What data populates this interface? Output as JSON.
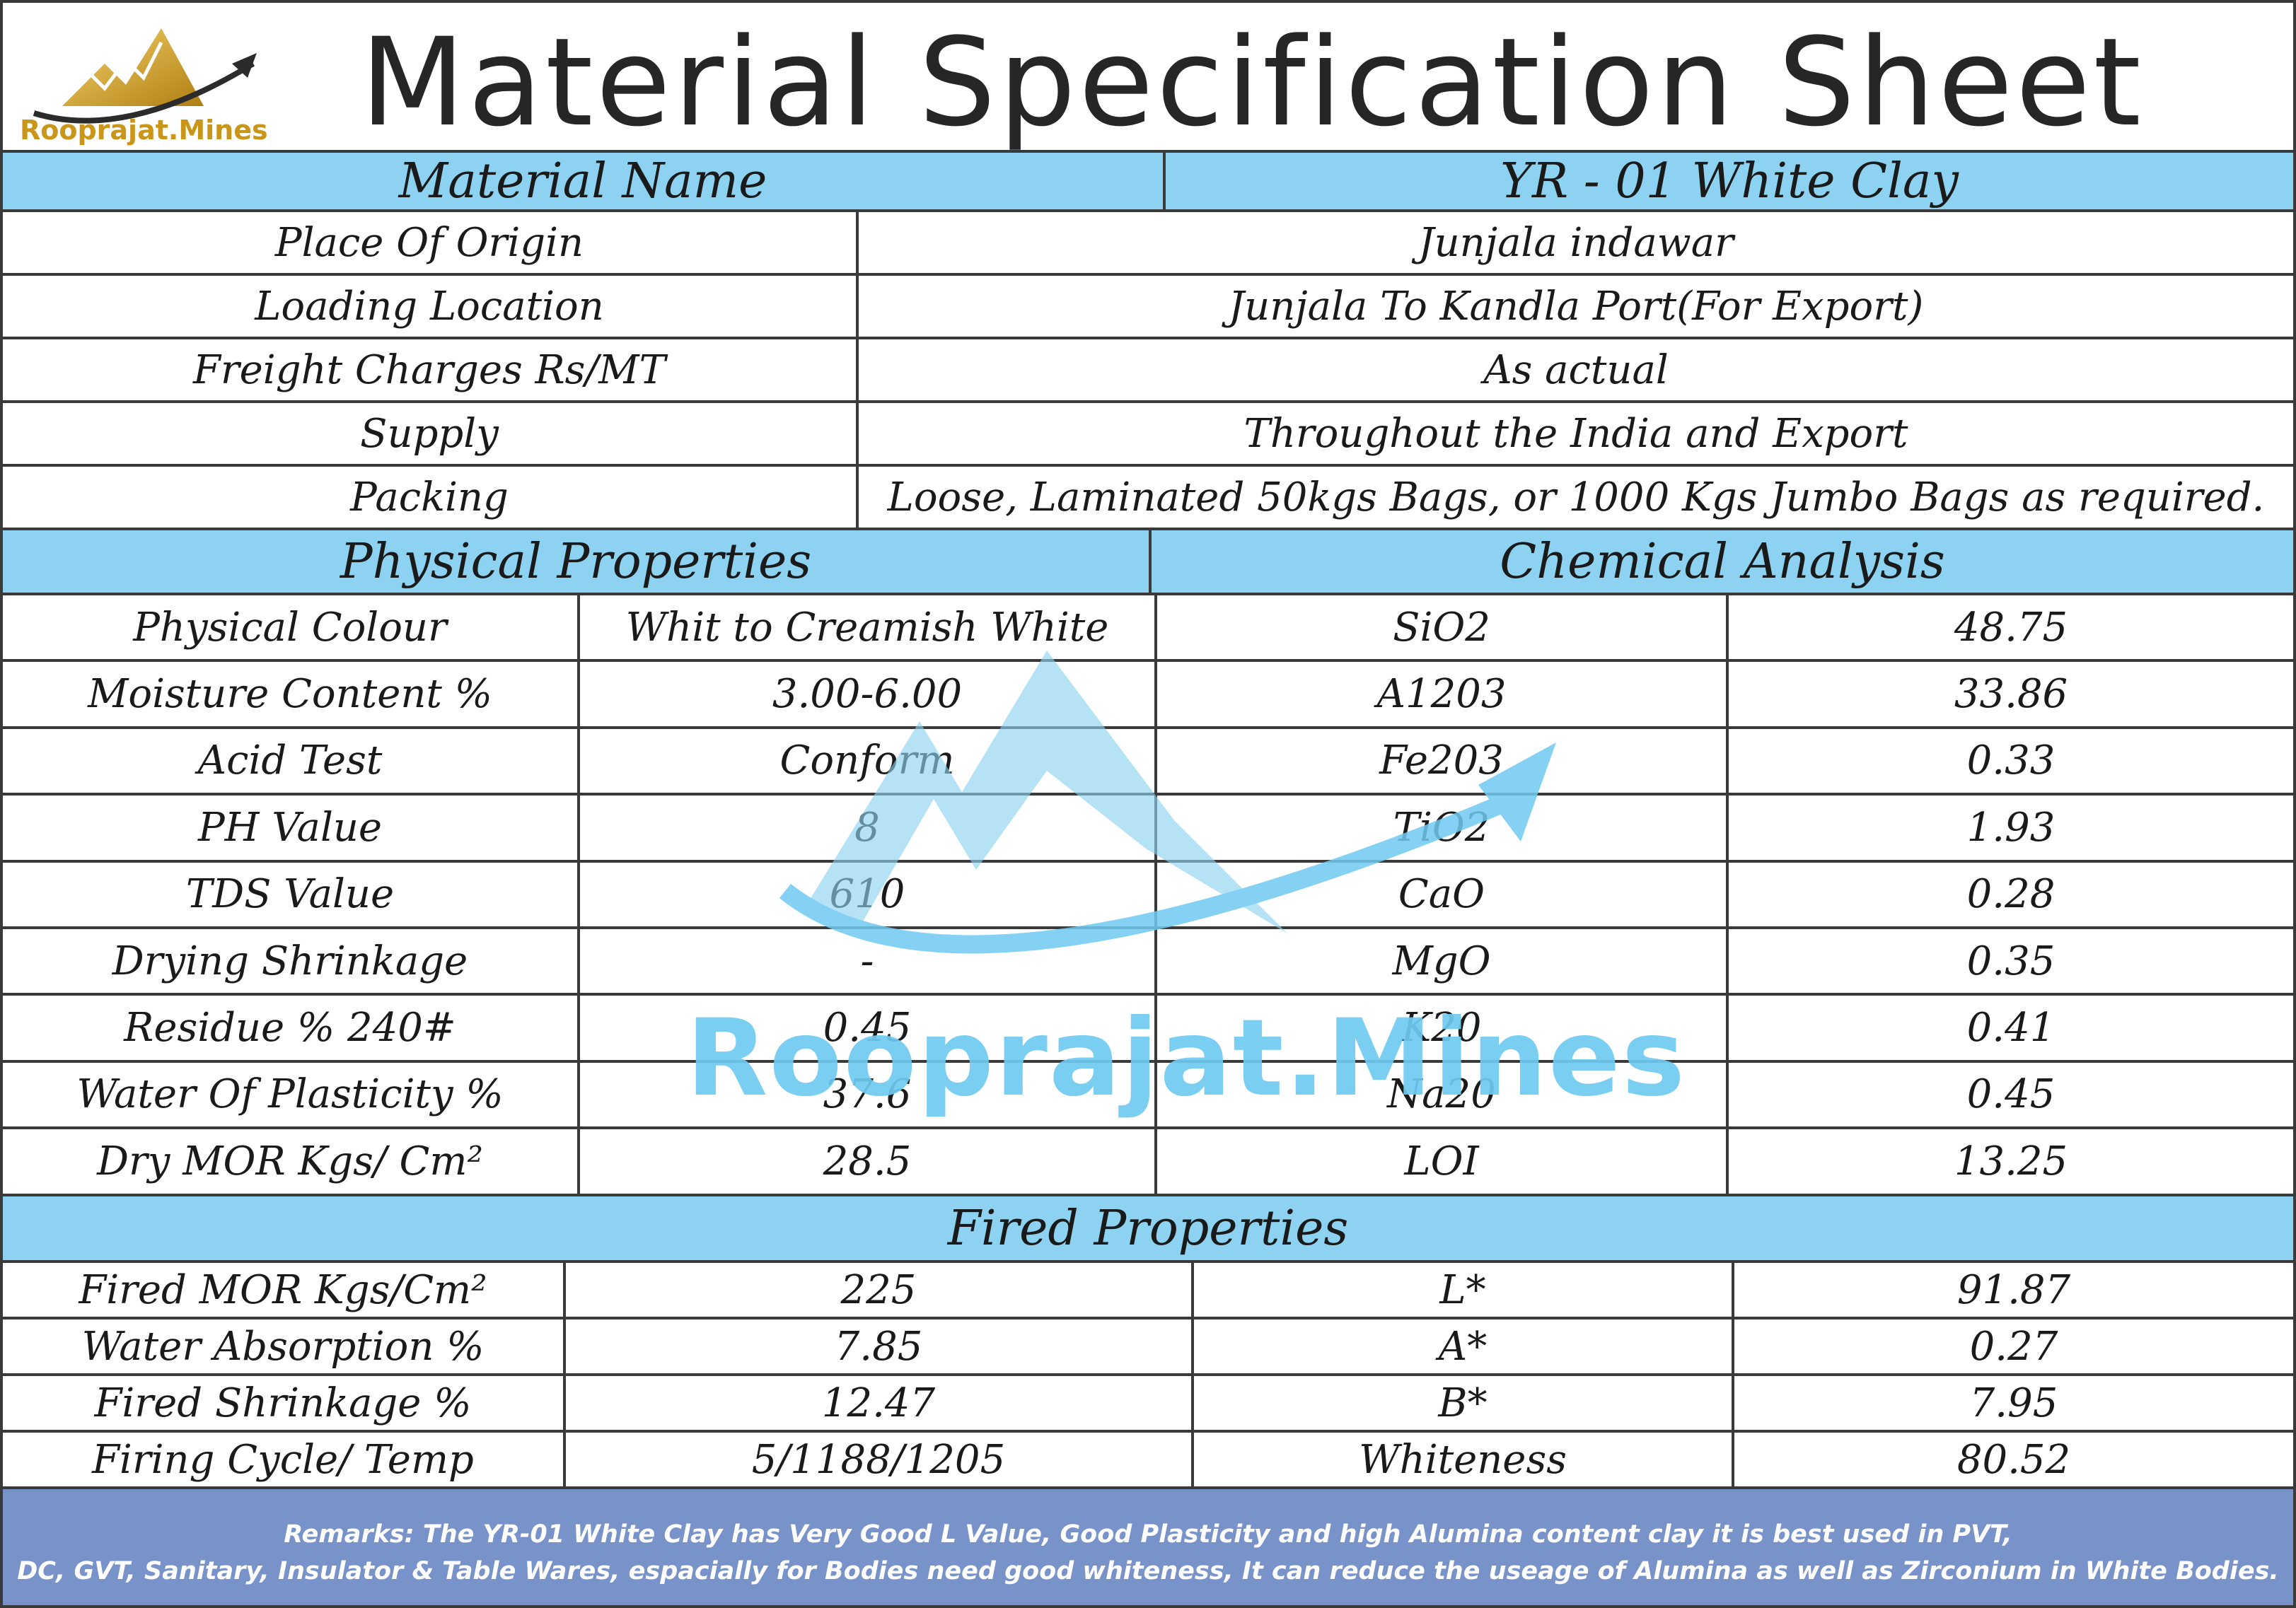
{
  "brand": {
    "logo_text": "Rooprajat.Mines",
    "watermark_text": "Rooprajat.Mines",
    "gold": "#c9961a",
    "accent": "#8dd2f0",
    "remarks_bg": "#7893c9"
  },
  "title": "Material Specification Sheet",
  "material": {
    "label": "Material Name",
    "value": "YR - 01 White Clay"
  },
  "info_rows": [
    {
      "label": "Place Of Origin",
      "value": "Junjala indawar"
    },
    {
      "label": "Loading Location",
      "value": "Junjala To Kandla Port(For Export)"
    },
    {
      "label": "Freight Charges Rs/MT",
      "value": "As actual"
    },
    {
      "label": "Supply",
      "value": "Throughout the India and Export"
    },
    {
      "label": "Packing",
      "value": "Loose, Laminated 50kgs Bags, or 1000 Kgs Jumbo Bags as required."
    }
  ],
  "sections": {
    "physical": "Physical Properties",
    "chemical": "Chemical Analysis",
    "fired": "Fired Properties"
  },
  "physical_rows": [
    {
      "prop": "Physical Colour",
      "pval": "Whit to Creamish White",
      "chem": "SiO2",
      "cval": "48.75"
    },
    {
      "prop": "Moisture Content %",
      "pval": "3.00-6.00",
      "chem": "A1203",
      "cval": "33.86"
    },
    {
      "prop": "Acid Test",
      "pval": "Conform",
      "chem": "Fe203",
      "cval": "0.33"
    },
    {
      "prop": "PH Value",
      "pval": "8",
      "chem": "TiO2",
      "cval": "1.93"
    },
    {
      "prop": "TDS Value",
      "pval": "610",
      "chem": "CaO",
      "cval": "0.28"
    },
    {
      "prop": "Drying Shrinkage",
      "pval": "-",
      "chem": "MgO",
      "cval": "0.35"
    },
    {
      "prop": "Residue % 240#",
      "pval": "0.45",
      "chem": "K20",
      "cval": "0.41"
    },
    {
      "prop": "Water Of Plasticity %",
      "pval": "37.6",
      "chem": "Na20",
      "cval": "0.45"
    },
    {
      "prop": "Dry MOR Kgs/ Cm²",
      "pval": "28.5",
      "chem": "LOI",
      "cval": "13.25"
    }
  ],
  "fired_rows": [
    {
      "prop": "Fired MOR Kgs/Cm²",
      "pval": "225",
      "chem": "L*",
      "cval": "91.87"
    },
    {
      "prop": "Water Absorption %",
      "pval": "7.85",
      "chem": "A*",
      "cval": "0.27"
    },
    {
      "prop": "Fired Shrinkage %",
      "pval": "12.47",
      "chem": "B*",
      "cval": "7.95"
    },
    {
      "prop": "Firing Cycle/ Temp",
      "pval": "5/1188/1205",
      "chem": "Whiteness",
      "cval": "80.52"
    }
  ],
  "remarks": {
    "line1": "Remarks: The YR-01 White Clay has Very Good L Value, Good Plasticity and high Alumina content clay it is best used in PVT,",
    "line2": "DC, GVT, Sanitary, Insulator & Table Wares, espacially for Bodies need good whiteness, It can reduce the useage of Alumina as well as Zirconium in White Bodies."
  }
}
